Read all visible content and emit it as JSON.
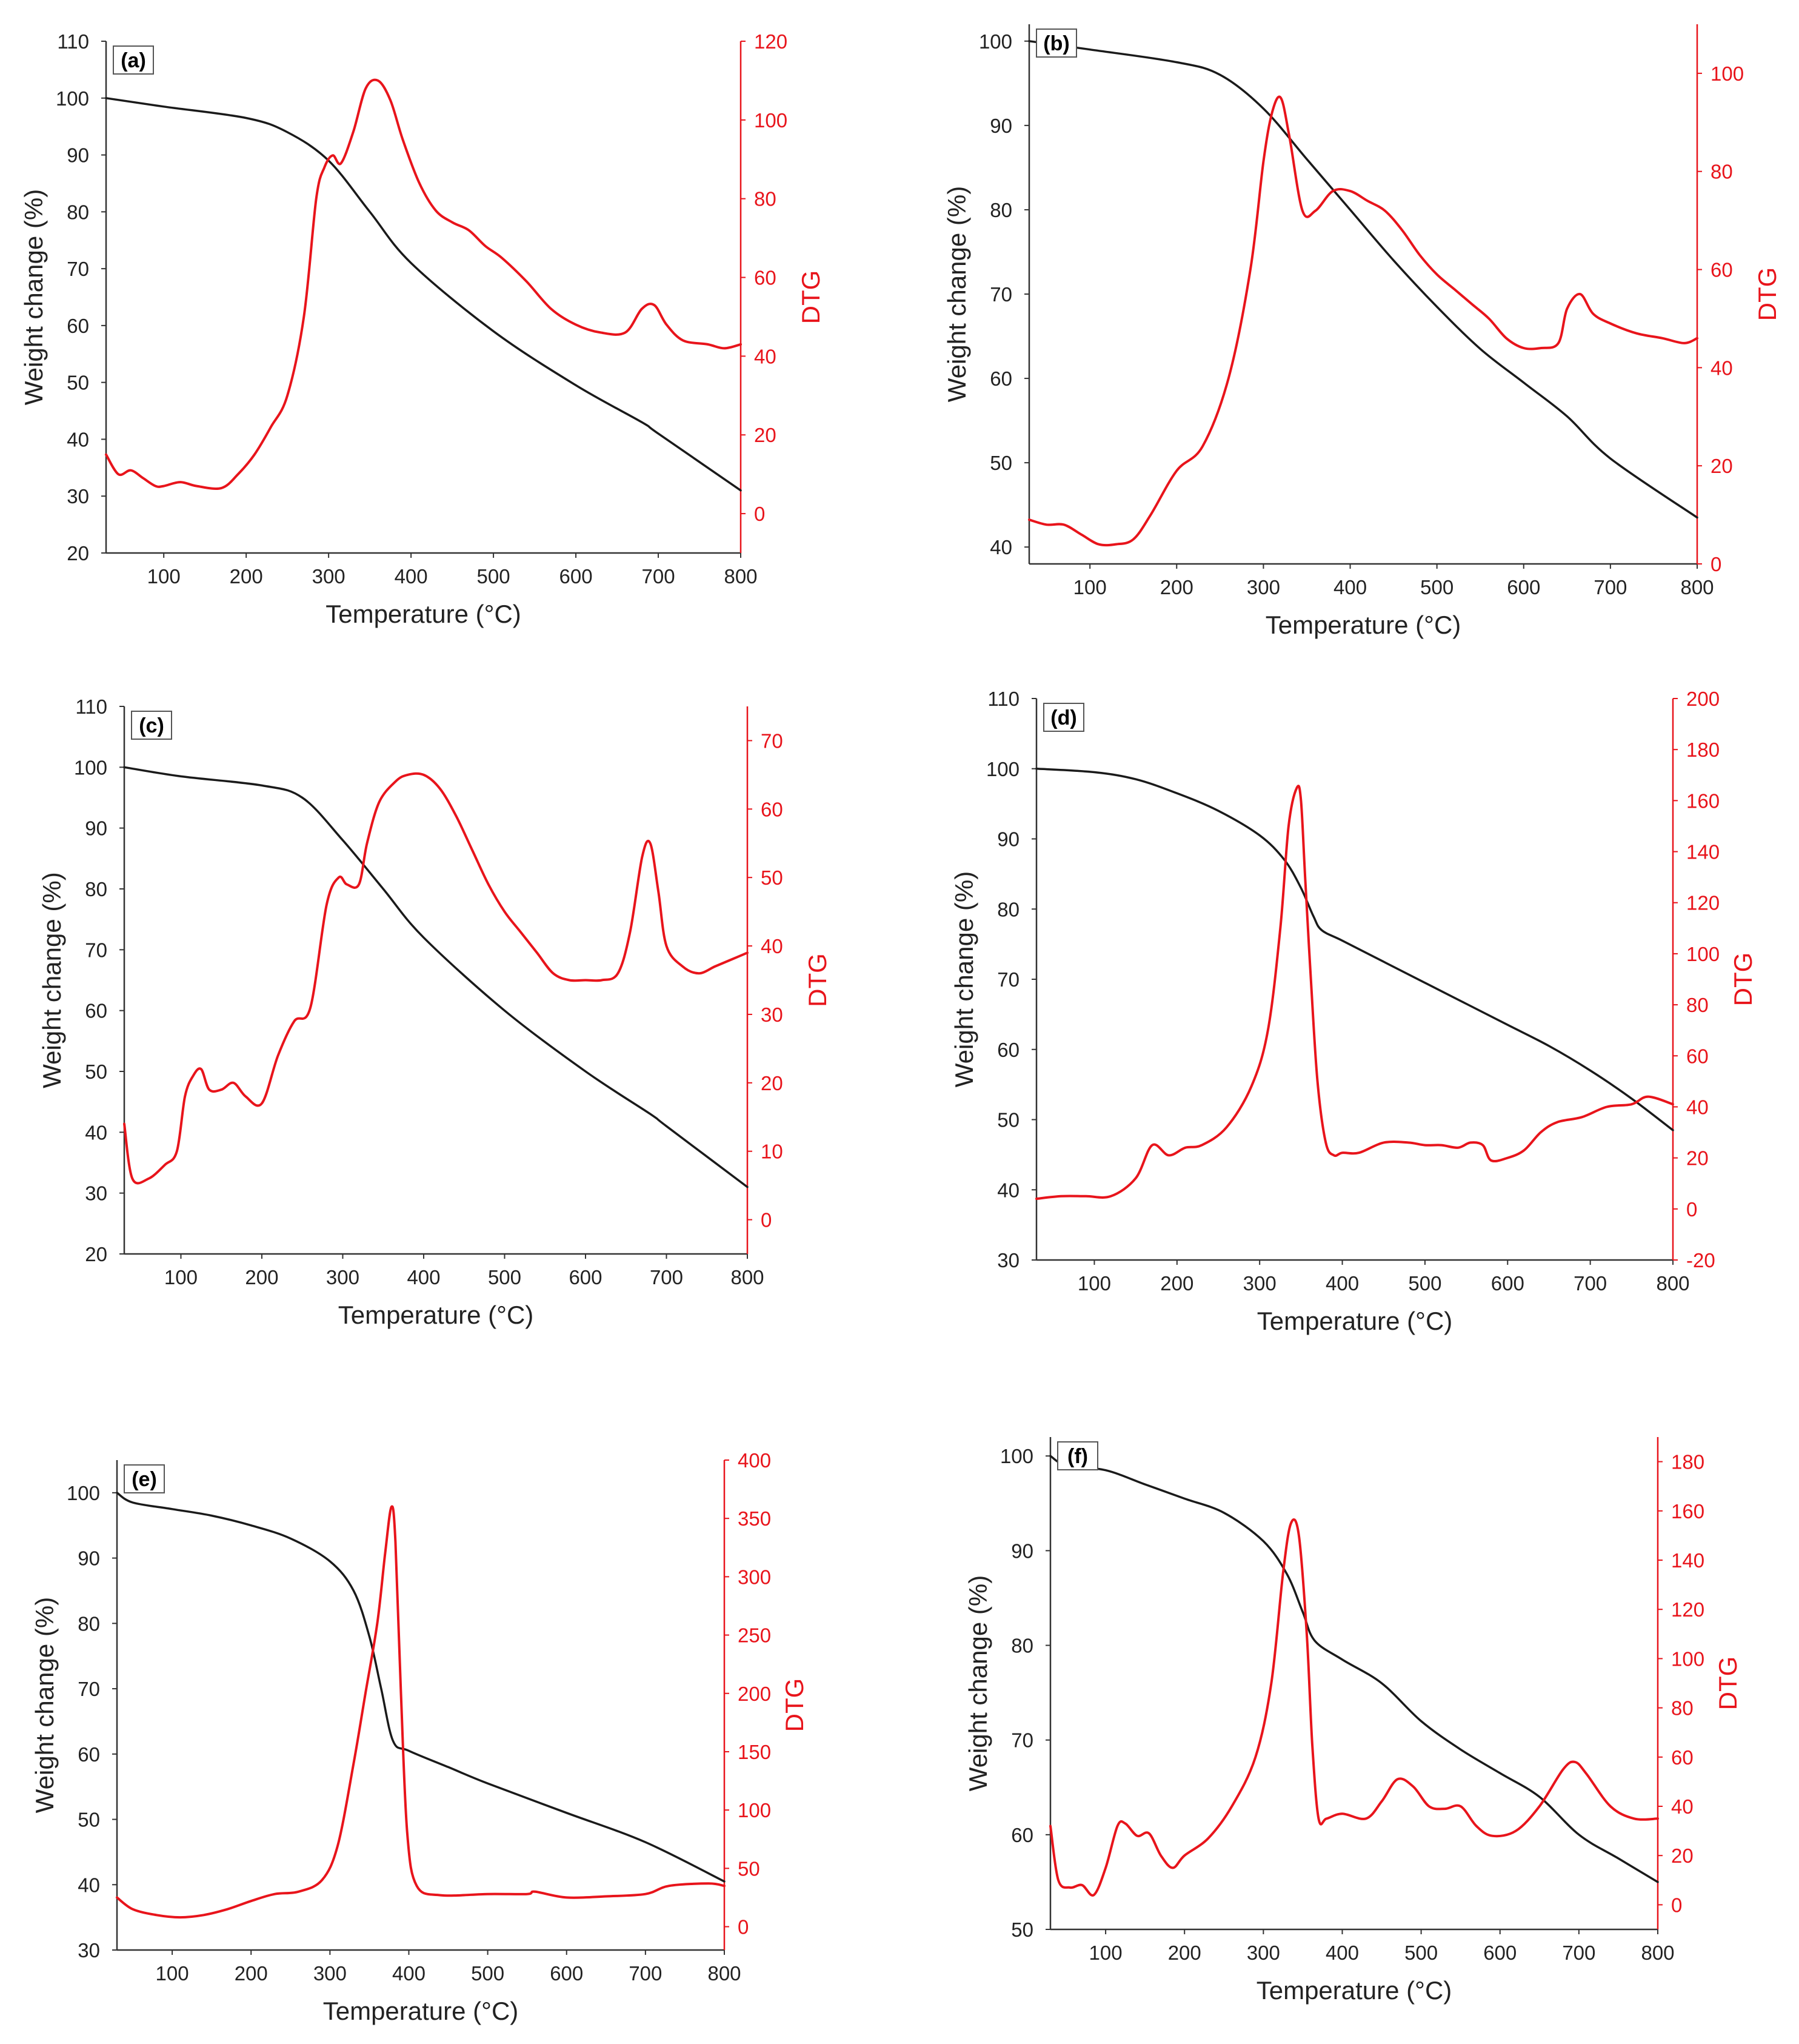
{
  "figure": {
    "colors": {
      "weight_line": "#1a1a1a",
      "dtg_line": "#e8141b",
      "axis": "#333333",
      "background": "#ffffff"
    }
  },
  "chart_data": [
    {
      "type": "line",
      "panel_label": "(a)",
      "xlabel": "Temperature (°C)",
      "ylabel": "Weight change (%)",
      "y2label": "DTG",
      "xlim": [
        30,
        800
      ],
      "x_ticks": [
        100,
        200,
        300,
        400,
        500,
        600,
        700,
        800
      ],
      "ylim": [
        20,
        110
      ],
      "y_ticks": [
        20,
        30,
        40,
        50,
        60,
        70,
        80,
        90,
        100,
        110
      ],
      "y2lim": [
        -10,
        120
      ],
      "y2_ticks": [
        0,
        20,
        40,
        60,
        80,
        100,
        120
      ],
      "series": [
        {
          "name": "Weight change",
          "axis": "left",
          "x": [
            30,
            100,
            200,
            250,
            300,
            350,
            400,
            500,
            600,
            680,
            700,
            800
          ],
          "y": [
            100,
            98.5,
            96.5,
            94,
            89,
            80,
            71,
            59,
            49.5,
            43,
            41,
            31
          ]
        },
        {
          "name": "DTG",
          "axis": "right",
          "x": [
            30,
            45,
            60,
            75,
            90,
            100,
            120,
            140,
            170,
            190,
            210,
            230,
            250,
            270,
            285,
            295,
            305,
            315,
            330,
            345,
            360,
            375,
            390,
            410,
            430,
            450,
            470,
            490,
            510,
            540,
            570,
            600,
            630,
            660,
            680,
            695,
            710,
            730,
            760,
            780,
            800
          ],
          "y": [
            15,
            10,
            11,
            9,
            7,
            7,
            8,
            7,
            6.5,
            10,
            15,
            22,
            30,
            50,
            80,
            88,
            91,
            89,
            97,
            108,
            110,
            105,
            95,
            84,
            77,
            74,
            72,
            68,
            65,
            59,
            52,
            48,
            46,
            46,
            52,
            53,
            48,
            44,
            43,
            42,
            43
          ]
        }
      ]
    },
    {
      "type": "line",
      "panel_label": "(b)",
      "xlabel": "Temperature (°C)",
      "ylabel": "Weight change (%)",
      "y2label": "DTG",
      "xlim": [
        30,
        800
      ],
      "x_ticks": [
        100,
        200,
        300,
        400,
        500,
        600,
        700,
        800
      ],
      "ylim": [
        38,
        102
      ],
      "y_ticks": [
        40,
        50,
        60,
        70,
        80,
        90,
        100
      ],
      "y2lim": [
        0,
        110
      ],
      "y2_ticks": [
        0,
        20,
        40,
        60,
        80,
        100
      ],
      "series": [
        {
          "name": "Weight change",
          "axis": "left",
          "x": [
            30,
            100,
            200,
            250,
            300,
            350,
            400,
            450,
            500,
            550,
            600,
            650,
            700,
            800
          ],
          "y": [
            100,
            99,
            97.5,
            96,
            92,
            86,
            80,
            74,
            68.5,
            63.5,
            59.5,
            55.5,
            50.5,
            43.5
          ]
        },
        {
          "name": "DTG",
          "axis": "right",
          "x": [
            30,
            50,
            70,
            90,
            110,
            130,
            150,
            170,
            200,
            230,
            260,
            285,
            300,
            310,
            320,
            330,
            345,
            360,
            380,
            400,
            420,
            440,
            460,
            480,
            500,
            520,
            540,
            560,
            580,
            600,
            620,
            640,
            650,
            665,
            680,
            700,
            730,
            760,
            785,
            800
          ],
          "y": [
            9,
            8,
            8,
            6,
            4,
            4,
            5,
            10,
            19,
            24,
            38,
            60,
            82,
            92,
            95,
            87,
            72,
            72,
            76,
            76,
            74,
            72,
            68,
            63,
            59,
            56,
            53,
            50,
            46,
            44,
            44,
            45,
            52,
            55,
            51,
            49,
            47,
            46,
            45,
            46
          ]
        }
      ]
    },
    {
      "type": "line",
      "panel_label": "(c)",
      "xlabel": "Temperature (°C)",
      "ylabel": "Weight change (%)",
      "y2label": "DTG",
      "xlim": [
        30,
        800
      ],
      "x_ticks": [
        100,
        200,
        300,
        400,
        500,
        600,
        700,
        800
      ],
      "ylim": [
        20,
        110
      ],
      "y_ticks": [
        20,
        30,
        40,
        50,
        60,
        70,
        80,
        90,
        100,
        110
      ],
      "y2lim": [
        -5,
        75
      ],
      "y2_ticks": [
        0,
        10,
        20,
        30,
        40,
        50,
        60,
        70
      ],
      "series": [
        {
          "name": "Weight change",
          "axis": "left",
          "x": [
            30,
            100,
            200,
            250,
            300,
            350,
            400,
            500,
            600,
            680,
            700,
            800
          ],
          "y": [
            100,
            98.5,
            97,
            95,
            88,
            80,
            72,
            60,
            50,
            43,
            41,
            31
          ]
        },
        {
          "name": "DTG",
          "axis": "right",
          "x": [
            30,
            40,
            60,
            80,
            95,
            105,
            115,
            125,
            135,
            150,
            165,
            180,
            200,
            220,
            240,
            260,
            280,
            295,
            305,
            320,
            330,
            345,
            365,
            380,
            400,
            420,
            440,
            460,
            480,
            500,
            520,
            540,
            560,
            580,
            600,
            620,
            640,
            655,
            670,
            680,
            690,
            700,
            720,
            740,
            760,
            780,
            800
          ],
          "y": [
            14,
            6,
            6,
            8,
            10,
            18,
            21,
            22,
            19,
            19,
            20,
            18,
            17,
            24,
            29,
            31,
            46,
            50,
            49,
            49,
            55,
            61,
            64,
            65,
            65,
            63,
            59,
            54,
            49,
            45,
            42,
            39,
            36,
            35,
            35,
            35,
            36,
            42,
            53,
            55,
            48,
            40,
            37,
            36,
            37,
            38,
            39
          ]
        }
      ]
    },
    {
      "type": "line",
      "panel_label": "(d)",
      "xlabel": "Temperature (°C)",
      "ylabel": "Weight change (%)",
      "y2label": "DTG",
      "xlim": [
        30,
        800
      ],
      "x_ticks": [
        100,
        200,
        300,
        400,
        500,
        600,
        700,
        800
      ],
      "ylim": [
        30,
        110
      ],
      "y_ticks": [
        30,
        40,
        50,
        60,
        70,
        80,
        90,
        100,
        110
      ],
      "y2lim": [
        -20,
        200
      ],
      "y2_ticks": [
        -20,
        0,
        20,
        40,
        60,
        80,
        100,
        120,
        140,
        160,
        180,
        200
      ],
      "series": [
        {
          "name": "Weight change",
          "axis": "left",
          "x": [
            30,
            100,
            150,
            200,
            250,
            300,
            330,
            350,
            365,
            375,
            400,
            450,
            500,
            550,
            600,
            650,
            700,
            750,
            800
          ],
          "y": [
            100,
            99.5,
            98.5,
            96.5,
            94,
            90.5,
            87,
            83,
            79,
            77,
            75.5,
            72.5,
            69.5,
            66.5,
            63.5,
            60.5,
            57,
            53,
            48.5
          ]
        },
        {
          "name": "DTG",
          "axis": "right",
          "x": [
            30,
            60,
            90,
            120,
            150,
            170,
            190,
            210,
            230,
            260,
            290,
            310,
            325,
            335,
            345,
            350,
            355,
            362,
            370,
            380,
            390,
            400,
            420,
            450,
            480,
            500,
            520,
            540,
            555,
            570,
            580,
            600,
            620,
            640,
            660,
            690,
            720,
            750,
            770,
            800
          ],
          "y": [
            4,
            5,
            5,
            5,
            12,
            25,
            21,
            24,
            25,
            32,
            48,
            70,
            110,
            150,
            165,
            160,
            130,
            90,
            50,
            26,
            21,
            22,
            22,
            26,
            26,
            25,
            25,
            24,
            26,
            25,
            19,
            20,
            23,
            30,
            34,
            36,
            40,
            41,
            44,
            41
          ]
        }
      ]
    },
    {
      "type": "line",
      "panel_label": "(e)",
      "xlabel": "Temperature (°C)",
      "ylabel": "Weight change (%)",
      "y2label": "DTG",
      "xlim": [
        30,
        800
      ],
      "x_ticks": [
        100,
        200,
        300,
        400,
        500,
        600,
        700,
        800
      ],
      "ylim": [
        30,
        105
      ],
      "y_ticks": [
        30,
        40,
        50,
        60,
        70,
        80,
        90,
        100
      ],
      "y2lim": [
        -20,
        400
      ],
      "y2_ticks": [
        0,
        50,
        100,
        150,
        200,
        250,
        300,
        350,
        400
      ],
      "series": [
        {
          "name": "Weight change",
          "axis": "left",
          "x": [
            30,
            50,
            100,
            150,
            200,
            250,
            300,
            330,
            350,
            365,
            380,
            400,
            450,
            500,
            600,
            700,
            800
          ],
          "y": [
            100,
            98.5,
            97.5,
            96.5,
            95,
            93,
            89.5,
            85,
            78,
            70,
            62,
            60.5,
            58,
            55.5,
            51,
            46.5,
            40.5
          ]
        },
        {
          "name": "DTG",
          "axis": "right",
          "x": [
            30,
            50,
            80,
            110,
            140,
            170,
            200,
            230,
            260,
            290,
            310,
            330,
            345,
            360,
            370,
            378,
            383,
            390,
            398,
            410,
            440,
            500,
            550,
            560,
            600,
            650,
            700,
            730,
            780,
            800
          ],
          "y": [
            25,
            15,
            10,
            8,
            10,
            15,
            22,
            28,
            30,
            40,
            70,
            140,
            200,
            260,
            320,
            360,
            330,
            200,
            80,
            35,
            27,
            28,
            28,
            30,
            25,
            26,
            28,
            35,
            37,
            35
          ]
        }
      ]
    },
    {
      "type": "line",
      "panel_label": "(f)",
      "xlabel": "Temperature (°C)",
      "ylabel": "Weight change (%)",
      "y2label": "DTG",
      "xlim": [
        30,
        800
      ],
      "x_ticks": [
        100,
        200,
        300,
        400,
        500,
        600,
        700,
        800
      ],
      "ylim": [
        50,
        102
      ],
      "y_ticks": [
        50,
        60,
        70,
        80,
        90,
        100
      ],
      "y2lim": [
        -10,
        190
      ],
      "y2_ticks": [
        0,
        20,
        40,
        60,
        80,
        100,
        120,
        140,
        160,
        180
      ],
      "series": [
        {
          "name": "Weight change",
          "axis": "left",
          "x": [
            30,
            50,
            100,
            150,
            200,
            250,
            300,
            330,
            350,
            365,
            400,
            450,
            500,
            550,
            600,
            650,
            700,
            750,
            800
          ],
          "y": [
            100,
            99,
            98.5,
            97,
            95.5,
            94,
            91,
            87.5,
            83.5,
            80.5,
            78.5,
            76,
            72,
            69,
            66.5,
            64,
            60,
            57.5,
            55
          ]
        },
        {
          "name": "DTG",
          "axis": "right",
          "x": [
            30,
            40,
            55,
            70,
            85,
            100,
            115,
            125,
            140,
            155,
            170,
            185,
            200,
            230,
            260,
            290,
            310,
            325,
            335,
            345,
            355,
            362,
            370,
            380,
            400,
            430,
            450,
            470,
            490,
            510,
            530,
            550,
            570,
            590,
            620,
            650,
            680,
            695,
            710,
            740,
            770,
            800
          ],
          "y": [
            32,
            10,
            7,
            8,
            4,
            15,
            32,
            33,
            28,
            29,
            20,
            15,
            20,
            27,
            40,
            60,
            90,
            135,
            155,
            150,
            110,
            65,
            35,
            35,
            37,
            35,
            42,
            51,
            48,
            40,
            39,
            40,
            32,
            28,
            30,
            40,
            55,
            58,
            53,
            40,
            35,
            35
          ]
        }
      ]
    }
  ]
}
